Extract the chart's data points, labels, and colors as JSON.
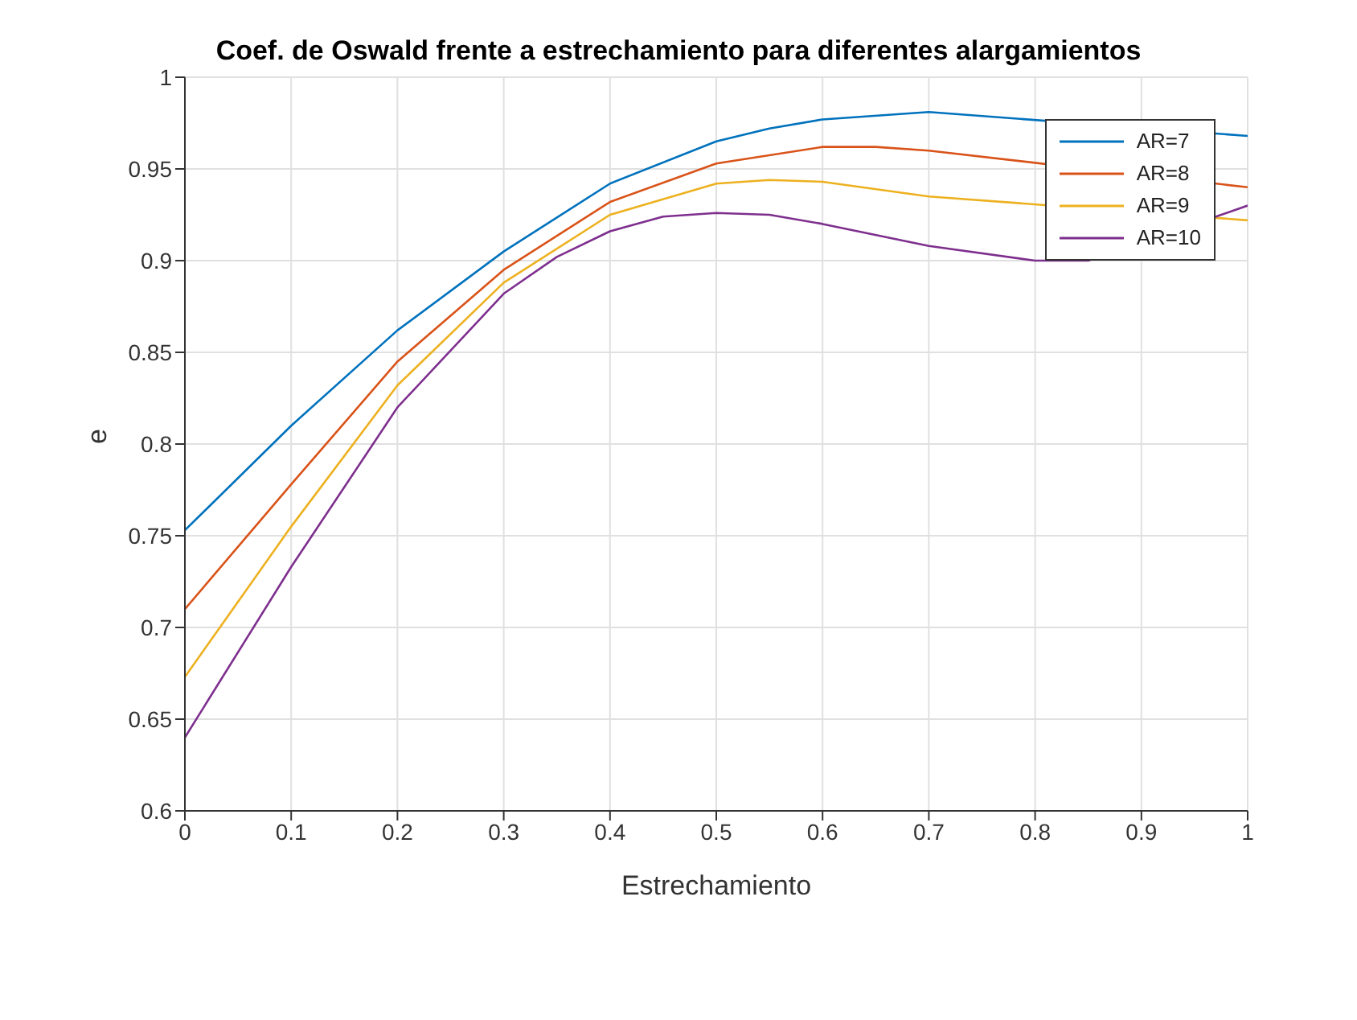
{
  "chart_data": {
    "type": "line",
    "title": "Coef. de Oswald frente a estrechamiento para diferentes alargamientos",
    "xlabel": "Estrechamiento",
    "ylabel": "e",
    "series": [
      {
        "name": "AR=7",
        "color": "#0072bd",
        "x": [
          0,
          0.1,
          0.2,
          0.3,
          0.4,
          0.5,
          0.55,
          0.6,
          0.7,
          1
        ],
        "values": [
          0.753,
          0.81,
          0.862,
          0.905,
          0.942,
          0.965,
          0.972,
          0.977,
          0.981,
          0.968
        ]
      },
      {
        "name": "AR=8",
        "color": "#d95319",
        "x": [
          0,
          0.1,
          0.2,
          0.3,
          0.4,
          0.5,
          0.6,
          0.65,
          0.7,
          1
        ],
        "values": [
          0.71,
          0.778,
          0.845,
          0.895,
          0.932,
          0.953,
          0.962,
          0.962,
          0.96,
          0.94
        ]
      },
      {
        "name": "AR=9",
        "color": "#edb120",
        "x": [
          0,
          0.1,
          0.2,
          0.3,
          0.4,
          0.5,
          0.55,
          0.6,
          0.7,
          1
        ],
        "values": [
          0.673,
          0.755,
          0.832,
          0.888,
          0.925,
          0.942,
          0.944,
          0.943,
          0.935,
          0.922
        ]
      },
      {
        "name": "AR=10",
        "color": "#7e2f8e",
        "x": [
          0,
          0.1,
          0.2,
          0.3,
          0.35,
          0.4,
          0.45,
          0.5,
          0.55,
          0.6,
          0.7,
          0.8,
          0.85,
          1
        ],
        "values": [
          0.64,
          0.733,
          0.82,
          0.882,
          0.902,
          0.916,
          0.924,
          0.926,
          0.925,
          0.92,
          0.908,
          0.9,
          0.9,
          0.93
        ]
      }
    ],
    "xlim": [
      0,
      1
    ],
    "xticks": [
      0,
      0.1,
      0.2,
      0.3,
      0.4,
      0.5,
      0.6,
      0.7,
      0.8,
      0.9,
      1
    ],
    "ylim": [
      0.6,
      1
    ],
    "yticks": [
      0.6,
      0.65,
      0.7,
      0.75,
      0.8,
      0.85,
      0.9,
      0.95,
      1
    ],
    "grid": true,
    "legend": "top right",
    "marker": "none",
    "line_style": "solid"
  }
}
